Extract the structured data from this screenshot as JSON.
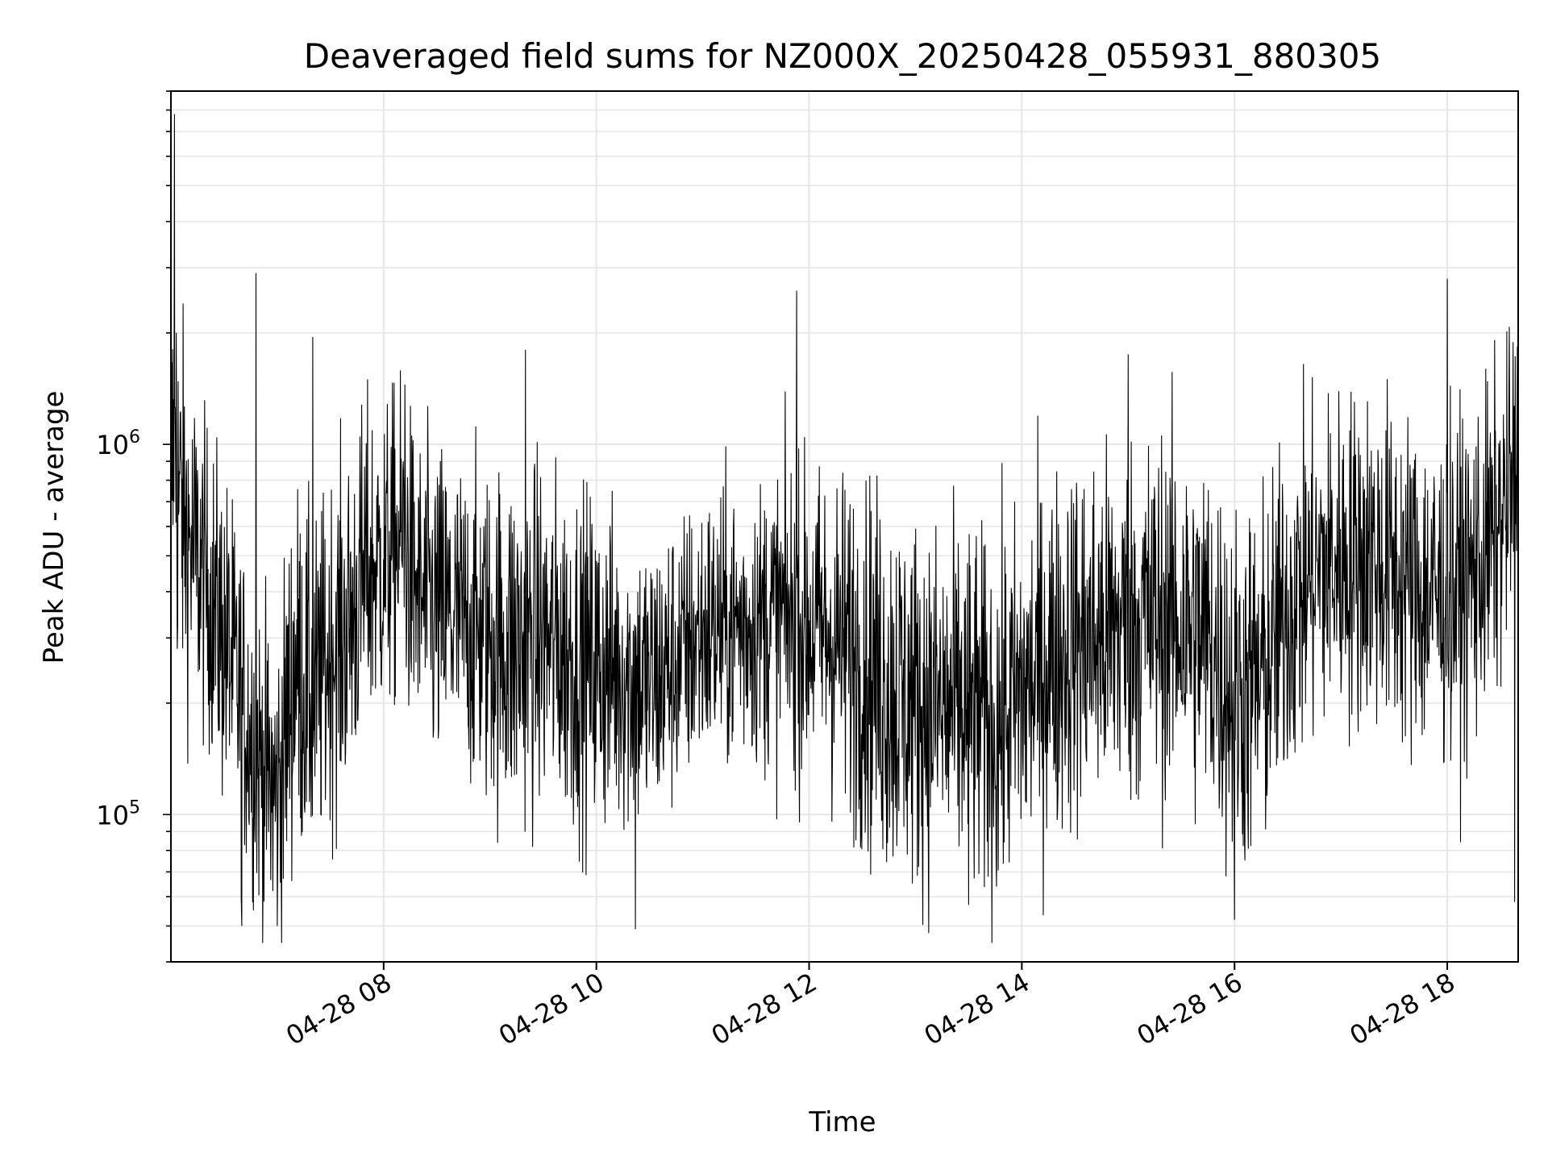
{
  "chart_data": {
    "type": "line",
    "title": "Deaveraged field sums for NZ000X_20250428_055931_880305",
    "xlabel": "Time",
    "ylabel": "Peak ADU - average",
    "x_range": [
      "2025-04-28T06:00",
      "2025-04-28T18:40"
    ],
    "x_ticks": [
      {
        "t": "2025-04-28T08:00",
        "label": "04-28 08"
      },
      {
        "t": "2025-04-28T10:00",
        "label": "04-28 10"
      },
      {
        "t": "2025-04-28T12:00",
        "label": "04-28 12"
      },
      {
        "t": "2025-04-28T14:00",
        "label": "04-28 14"
      },
      {
        "t": "2025-04-28T16:00",
        "label": "04-28 16"
      },
      {
        "t": "2025-04-28T18:00",
        "label": "04-28 18"
      }
    ],
    "y_scale": "log",
    "ylim": [
      40000,
      9000000
    ],
    "y_ticks": [
      {
        "value": 100000,
        "base": "10",
        "exp": "5"
      },
      {
        "value": 1000000,
        "base": "10",
        "exp": "6"
      }
    ],
    "grid": true,
    "line_color": "#000000",
    "grid_color": "#e6e6e6",
    "series": [
      {
        "x": [
          "2025-04-28T06:00",
          "2025-04-28T06:05",
          "2025-04-28T06:10",
          "2025-04-28T06:20",
          "2025-04-28T06:30",
          "2025-04-28T06:40",
          "2025-04-28T06:50",
          "2025-04-28T07:00",
          "2025-04-28T07:10",
          "2025-04-28T07:20",
          "2025-04-28T07:30",
          "2025-04-28T07:40",
          "2025-04-28T07:50",
          "2025-04-28T08:00",
          "2025-04-28T08:10",
          "2025-04-28T08:20",
          "2025-04-28T08:30",
          "2025-04-28T08:45",
          "2025-04-28T09:00",
          "2025-04-28T09:15",
          "2025-04-28T09:30",
          "2025-04-28T09:45",
          "2025-04-28T10:00",
          "2025-04-28T10:15",
          "2025-04-28T10:30",
          "2025-04-28T10:45",
          "2025-04-28T11:00",
          "2025-04-28T11:15",
          "2025-04-28T11:30",
          "2025-04-28T11:45",
          "2025-04-28T12:00",
          "2025-04-28T12:15",
          "2025-04-28T12:30",
          "2025-04-28T12:45",
          "2025-04-28T13:00",
          "2025-04-28T13:15",
          "2025-04-28T13:30",
          "2025-04-28T13:45",
          "2025-04-28T14:00",
          "2025-04-28T14:15",
          "2025-04-28T14:30",
          "2025-04-28T14:45",
          "2025-04-28T15:00",
          "2025-04-28T15:15",
          "2025-04-28T15:30",
          "2025-04-28T15:45",
          "2025-04-28T16:00",
          "2025-04-28T16:15",
          "2025-04-28T16:30",
          "2025-04-28T16:45",
          "2025-04-28T17:00",
          "2025-04-28T17:15",
          "2025-04-28T17:30",
          "2025-04-28T17:45",
          "2025-04-28T18:00",
          "2025-04-28T18:15",
          "2025-04-28T18:30",
          "2025-04-28T18:40"
        ],
        "y": [
          900000,
          700000,
          550000,
          420000,
          300000,
          200000,
          140000,
          110000,
          260000,
          200000,
          280000,
          320000,
          450000,
          480000,
          560000,
          380000,
          350000,
          330000,
          300000,
          280000,
          300000,
          270000,
          250000,
          240000,
          220000,
          260000,
          310000,
          320000,
          330000,
          340000,
          320000,
          300000,
          260000,
          220000,
          200000,
          190000,
          190000,
          170000,
          210000,
          260000,
          290000,
          300000,
          330000,
          340000,
          330000,
          300000,
          210000,
          230000,
          360000,
          450000,
          480000,
          500000,
          450000,
          400000,
          380000,
          450000,
          600000,
          900000
        ],
        "spread": [
          3.0,
          3.0,
          2.6,
          2.4,
          2.6,
          2.4,
          2.4,
          2.6,
          2.8,
          2.6,
          2.6,
          2.6,
          2.6,
          2.4,
          2.4,
          2.4,
          2.6,
          2.4,
          2.6,
          2.8,
          2.6,
          2.6,
          2.6,
          2.4,
          2.4,
          2.2,
          2.2,
          2.2,
          2.2,
          2.4,
          2.4,
          2.6,
          2.8,
          3.0,
          2.8,
          2.8,
          2.8,
          2.8,
          2.8,
          2.8,
          2.8,
          2.8,
          2.8,
          2.8,
          2.8,
          2.8,
          2.8,
          2.8,
          2.6,
          2.6,
          2.6,
          2.6,
          2.6,
          2.6,
          2.6,
          2.6,
          2.4,
          2.4
        ]
      }
    ],
    "spikes": [
      {
        "t": "2025-04-28T06:02",
        "value": 7800000
      },
      {
        "t": "2025-04-28T06:00",
        "value": 2200000
      },
      {
        "t": "2025-04-28T06:03",
        "value": 2000000
      },
      {
        "t": "2025-04-28T06:48",
        "value": 2900000
      },
      {
        "t": "2025-04-28T06:40",
        "value": 50000
      },
      {
        "t": "2025-04-28T07:00",
        "value": 50000
      },
      {
        "t": "2025-04-28T07:20",
        "value": 1950000
      },
      {
        "t": "2025-04-28T08:12",
        "value": 1450000
      },
      {
        "t": "2025-04-28T09:20",
        "value": 1800000
      },
      {
        "t": "2025-04-28T10:22",
        "value": 49000
      },
      {
        "t": "2025-04-28T11:53",
        "value": 2600000
      },
      {
        "t": "2025-04-28T13:30",
        "value": 57000
      },
      {
        "t": "2025-04-28T15:00",
        "value": 1750000
      },
      {
        "t": "2025-04-28T16:00",
        "value": 52000
      },
      {
        "t": "2025-04-28T18:00",
        "value": 2800000
      },
      {
        "t": "2025-04-28T18:38",
        "value": 58000
      }
    ]
  }
}
